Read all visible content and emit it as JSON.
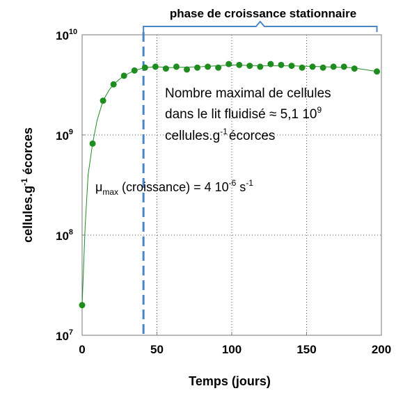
{
  "chart_data": {
    "type": "scatter",
    "title": "",
    "xlabel": "Temps (jours)",
    "ylabel": {
      "main": "cellules.g",
      "sup": "-1",
      "tail": " écorces"
    },
    "xlim": [
      0,
      200
    ],
    "ylim": [
      10000000,
      10000000000
    ],
    "yscale": "log",
    "xticks": [
      0,
      50,
      100,
      150,
      200
    ],
    "xtick_labels": [
      "0",
      "50",
      "100",
      "150",
      "200"
    ],
    "yticks": [
      10000000,
      100000000,
      1000000000,
      10000000000
    ],
    "ytick_labels": [
      {
        "base": "10",
        "exp": "7"
      },
      {
        "base": "10",
        "exp": "8"
      },
      {
        "base": "10",
        "exp": "9"
      },
      {
        "base": "10",
        "exp": "10"
      }
    ],
    "grid": true,
    "colors": {
      "series": "#1e8c1e",
      "phase_line": "#4a86c5",
      "bracket": "#4a86c5",
      "grid": "#555555",
      "text": "#000000"
    },
    "series": [
      {
        "x": [
          0,
          7,
          14,
          21,
          28,
          35,
          42,
          49,
          56,
          63,
          70,
          77,
          84,
          91,
          98,
          105,
          112,
          119,
          126,
          133,
          140,
          147,
          154,
          161,
          168,
          175,
          182,
          197
        ],
        "y": [
          20000000,
          820000000,
          2200000000,
          3200000000,
          3900000000,
          4400000000,
          4700000000,
          4800000000,
          4600000000,
          4800000000,
          4500000000,
          4700000000,
          4800000000,
          4700000000,
          5100000000,
          5000000000,
          4900000000,
          4800000000,
          5100000000,
          5000000000,
          4900000000,
          4700000000,
          4800000000,
          4700000000,
          4800000000,
          4800000000,
          4600000000,
          4300000000
        ]
      }
    ],
    "fit_curve": {
      "x": [
        0,
        2,
        4,
        7,
        10,
        14,
        18,
        21,
        25,
        28,
        35,
        42,
        49,
        60,
        80,
        100,
        120,
        140,
        160,
        180,
        197
      ],
      "y": [
        20000000,
        120000000,
        400000000,
        820000000,
        1400000000,
        2200000000,
        2800000000,
        3200000000,
        3600000000,
        3900000000,
        4400000000,
        4700000000,
        4800000000,
        4700000000,
        4800000000,
        5000000000,
        4900000000,
        4900000000,
        4800000000,
        4700000000,
        4300000000
      ]
    },
    "phase_start_x": 41,
    "bracket": {
      "x_start": 41,
      "x_end": 197,
      "label": "phase de croissance stationnaire"
    },
    "annotations": {
      "max_cells": {
        "line1": "Nombre maximal de cellules",
        "line2_prefix": "dans le lit fluidisé ≈ 5,1 10",
        "line2_sup": "9",
        "line3_prefix": "cellules.g",
        "line3_sup": "-1",
        "line3_suffix": "écorces"
      },
      "mu": {
        "symbol": "μ",
        "sub": "max",
        "text": " (croissance) = 4 10",
        "exp": "-6",
        "unit_prefix": "  s",
        "unit_sup": "-1"
      }
    }
  }
}
